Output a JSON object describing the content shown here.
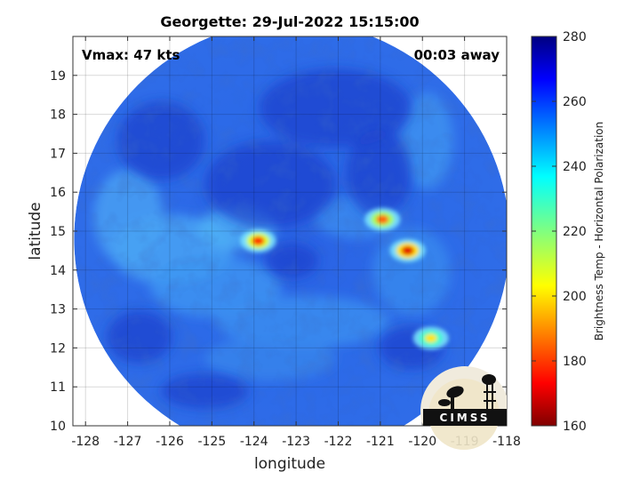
{
  "figure": {
    "title": "Georgette: 29-Jul-2022 15:15:00",
    "vmax_label": "Vmax: 47 kts",
    "away_label": "00:03 away",
    "logo_text": "CIMSS"
  },
  "chart_data": {
    "type": "heatmap",
    "title": "Georgette: 29-Jul-2022 15:15:00",
    "xlabel": "longitude",
    "ylabel": "latitude",
    "xlim": [
      -128.3,
      -118
    ],
    "ylim": [
      10,
      20
    ],
    "x_ticks": [
      -128,
      -127,
      -126,
      -125,
      -124,
      -123,
      -122,
      -121,
      -120,
      -119,
      -118
    ],
    "y_ticks": [
      10,
      11,
      12,
      13,
      14,
      15,
      16,
      17,
      18,
      19
    ],
    "grid": true,
    "swath_center": [
      -123.1,
      14.8
    ],
    "colorbar": {
      "label": "Brightness Temp - Horizontal Polarization",
      "min": 160,
      "max": 280,
      "ticks": [
        160,
        180,
        200,
        220,
        240,
        260,
        280
      ],
      "colormap": "jet"
    },
    "cold_features": [
      {
        "x": -123.9,
        "y": 14.75,
        "temp": 178
      },
      {
        "x": -120.35,
        "y": 14.5,
        "temp": 170
      },
      {
        "x": -120.95,
        "y": 15.3,
        "temp": 185
      },
      {
        "x": -119.8,
        "y": 12.25,
        "temp": 200
      }
    ]
  }
}
